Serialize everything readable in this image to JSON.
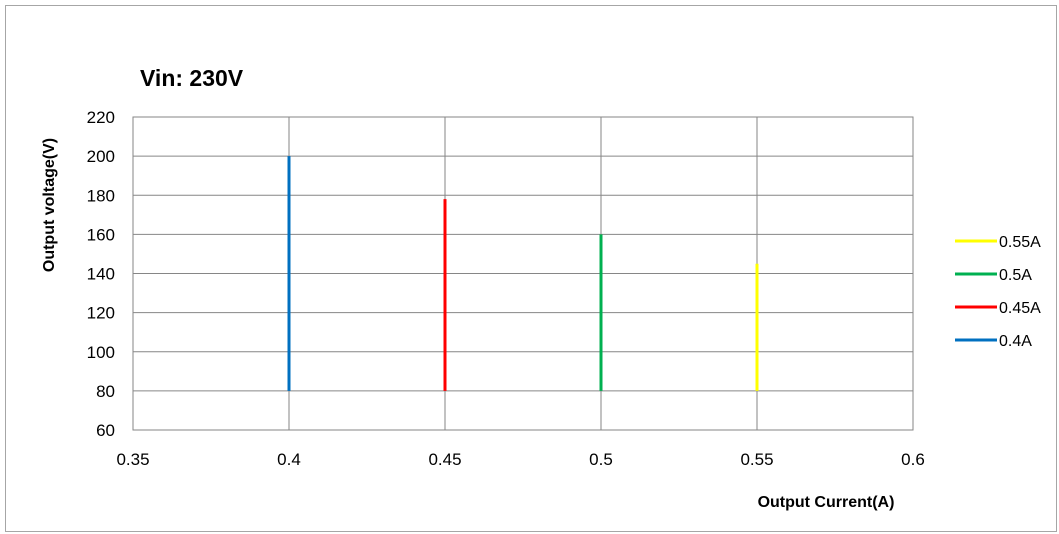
{
  "chart_data": {
    "type": "line",
    "title": "Vin: 230V",
    "xlabel": "Output Current(A)",
    "ylabel": "Output voltage(V)",
    "xlim": [
      0.35,
      0.6
    ],
    "ylim": [
      60,
      220
    ],
    "x_ticks": [
      0.35,
      0.4,
      0.45,
      0.5,
      0.55,
      0.6
    ],
    "x_tick_labels": [
      "0.35",
      "0.4",
      "0.45",
      "0.5",
      "0.55",
      "0.6"
    ],
    "y_ticks": [
      60,
      80,
      100,
      120,
      140,
      160,
      180,
      200,
      220
    ],
    "y_tick_labels": [
      "60",
      "80",
      "100",
      "120",
      "140",
      "160",
      "180",
      "200",
      "220"
    ],
    "grid": true,
    "legend_position": "right",
    "series": [
      {
        "name": "0.55A",
        "color": "#ffff00",
        "x": [
          0.55,
          0.55
        ],
        "y": [
          80,
          145
        ]
      },
      {
        "name": "0.5A",
        "color": "#00b050",
        "x": [
          0.5,
          0.5
        ],
        "y": [
          80,
          160
        ]
      },
      {
        "name": "0.45A",
        "color": "#ff0000",
        "x": [
          0.45,
          0.45
        ],
        "y": [
          80,
          178
        ]
      },
      {
        "name": "0.4A",
        "color": "#0070c0",
        "x": [
          0.4,
          0.4
        ],
        "y": [
          80,
          200
        ]
      }
    ]
  }
}
